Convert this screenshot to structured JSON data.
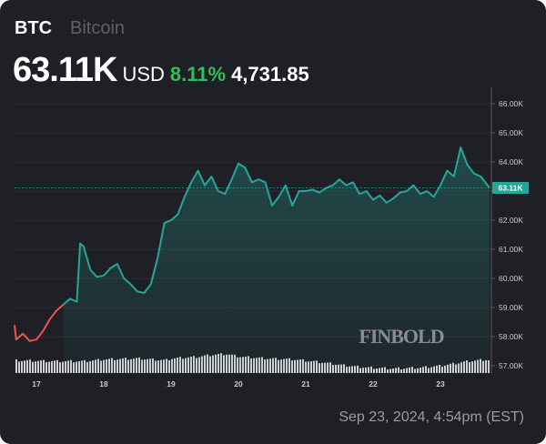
{
  "header": {
    "symbol": "BTC",
    "name": "Bitcoin",
    "price": "63.11K",
    "currency": "USD",
    "change_pct": "8.11%",
    "change_abs": "4,731.85"
  },
  "watermark": "FINBOLD",
  "timestamp": "Sep 23, 2024, 4:54pm (EST)",
  "colors": {
    "background": "#1e2025",
    "line_up": "#26a69a",
    "line_down": "#ef5350",
    "change_positive": "#2fbf5a",
    "price_label_bg": "#26a69a",
    "volume_bars": "#d0d0d4"
  },
  "chart_data": {
    "type": "line",
    "title": "BTC Bitcoin",
    "xlabel": "",
    "ylabel": "",
    "x_ticks": [
      "17",
      "18",
      "19",
      "20",
      "21",
      "22",
      "23"
    ],
    "y_ticks": [
      "57.00K",
      "58.00K",
      "59.00K",
      "60.00K",
      "61.00K",
      "62.00K",
      "63.00K",
      "64.00K",
      "65.00K",
      "66.00K"
    ],
    "ylim": [
      56.9,
      66.4
    ],
    "current_price_label": "63.11K",
    "grid": true,
    "legend": "none",
    "series": [
      {
        "name": "BTC/USD",
        "x": [
          16.6,
          16.7,
          16.8,
          16.9,
          17.0,
          17.1,
          17.2,
          17.3,
          17.4,
          17.5,
          17.6,
          17.65,
          17.7,
          17.8,
          17.9,
          18.0,
          18.1,
          18.2,
          18.3,
          18.4,
          18.5,
          18.6,
          18.7,
          18.8,
          18.9,
          19.0,
          19.1,
          19.2,
          19.3,
          19.4,
          19.5,
          19.6,
          19.7,
          19.8,
          19.9,
          20.0,
          20.1,
          20.2,
          20.3,
          20.4,
          20.5,
          20.6,
          20.7,
          20.8,
          20.9,
          21.0,
          21.1,
          21.2,
          21.3,
          21.4,
          21.5,
          21.6,
          21.7,
          21.8,
          21.9,
          22.0,
          22.1,
          22.2,
          22.3,
          22.4,
          22.5,
          22.6,
          22.7,
          22.8,
          22.9,
          23.0,
          23.1,
          23.2,
          23.3,
          23.4,
          23.5,
          23.6,
          23.7
        ],
        "values": [
          58.4,
          57.9,
          58.1,
          57.85,
          57.9,
          58.2,
          58.6,
          58.9,
          59.1,
          59.3,
          59.2,
          61.2,
          61.1,
          60.3,
          60.05,
          60.1,
          60.35,
          60.5,
          60.0,
          59.8,
          59.55,
          59.5,
          59.8,
          60.7,
          61.9,
          62.0,
          62.2,
          62.8,
          63.3,
          63.7,
          63.2,
          63.5,
          63.0,
          62.9,
          63.4,
          63.95,
          63.8,
          63.3,
          63.4,
          63.3,
          62.5,
          62.8,
          63.2,
          62.5,
          63.0,
          63.0,
          63.05,
          62.95,
          63.1,
          63.2,
          63.4,
          63.2,
          63.3,
          62.9,
          63.0,
          62.7,
          62.85,
          62.6,
          62.75,
          62.95,
          63.0,
          63.2,
          62.9,
          63.0,
          62.8,
          63.2,
          63.7,
          63.5,
          64.5,
          63.9,
          63.6,
          63.5,
          63.11
        ]
      }
    ],
    "volume": "relative bars along bottom, higher around Sep 19-20, lowest around Sep 22"
  }
}
